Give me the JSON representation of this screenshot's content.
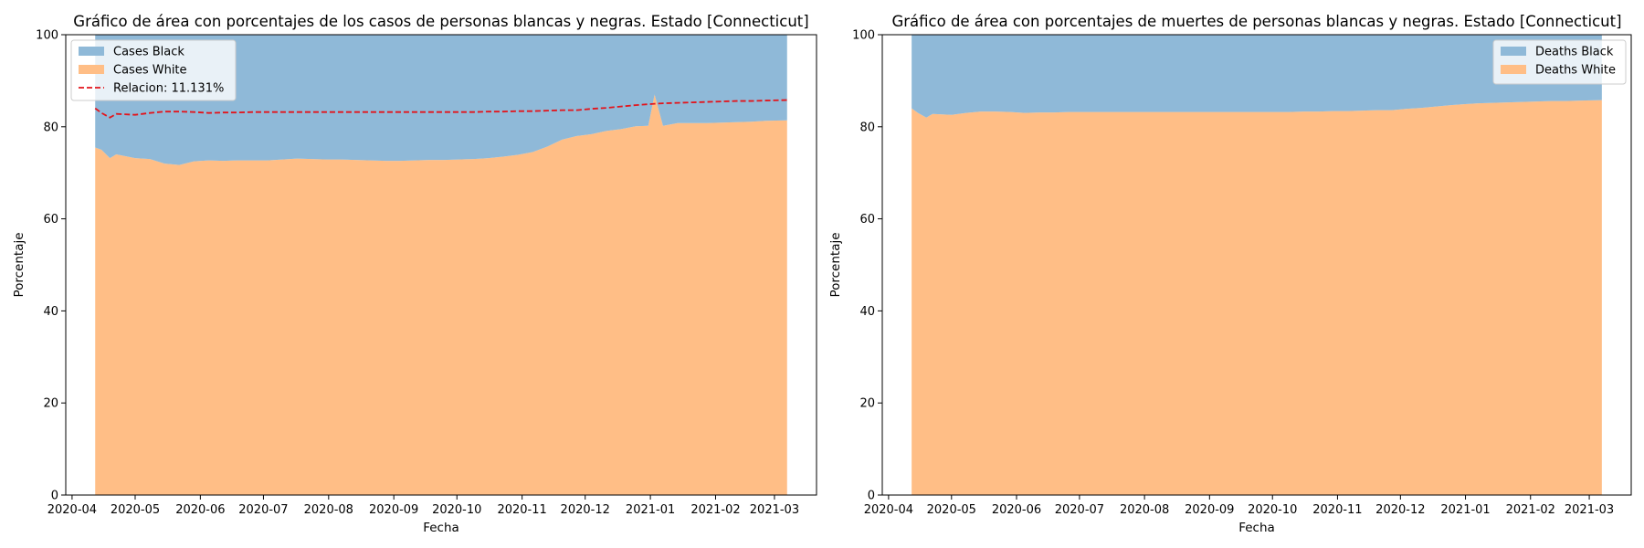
{
  "colors": {
    "black_area": "#8fb9d8",
    "white_area": "#ffbe86",
    "relacion_line": "#e3141b",
    "background": "#ffffff"
  },
  "chart_data": [
    {
      "type": "area",
      "stacked": true,
      "title": "Gráfico de área con porcentajes de los casos de personas blancas y negras. Estado [Connecticut]",
      "xlabel": "Fecha",
      "ylabel": "Porcentaje",
      "xlim": [
        "2020-03-29",
        "2021-03-21"
      ],
      "ylim": [
        0,
        100
      ],
      "x_ticks": [
        "2020-04",
        "2020-05",
        "2020-06",
        "2020-07",
        "2020-08",
        "2020-09",
        "2020-10",
        "2020-11",
        "2020-12",
        "2021-01",
        "2021-02",
        "2021-03"
      ],
      "y_ticks": [
        0,
        20,
        40,
        60,
        80,
        100
      ],
      "grid": false,
      "legend_position": "upper-left",
      "x": [
        "2020-04-12",
        "2020-04-15",
        "2020-04-19",
        "2020-04-22",
        "2020-05-01",
        "2020-05-08",
        "2020-05-15",
        "2020-05-22",
        "2020-05-29",
        "2020-06-05",
        "2020-06-12",
        "2020-06-19",
        "2020-06-26",
        "2020-07-03",
        "2020-07-10",
        "2020-07-17",
        "2020-07-24",
        "2020-07-31",
        "2020-08-07",
        "2020-08-14",
        "2020-08-21",
        "2020-08-28",
        "2020-09-04",
        "2020-09-11",
        "2020-09-18",
        "2020-09-25",
        "2020-10-02",
        "2020-10-09",
        "2020-10-16",
        "2020-10-23",
        "2020-10-30",
        "2020-11-06",
        "2020-11-13",
        "2020-11-20",
        "2020-11-27",
        "2020-12-04",
        "2020-12-11",
        "2020-12-18",
        "2020-12-25",
        "2020-12-31",
        "2021-01-03",
        "2021-01-07",
        "2021-01-14",
        "2021-01-21",
        "2021-01-28",
        "2021-02-04",
        "2021-02-11",
        "2021-02-18",
        "2021-02-25",
        "2021-03-07"
      ],
      "series": [
        {
          "name": "Cases Black",
          "values": [
            24.5,
            25.0,
            26.8,
            26.0,
            26.8,
            27.0,
            28.0,
            28.3,
            27.5,
            27.3,
            27.4,
            27.3,
            27.3,
            27.3,
            27.1,
            26.9,
            27.0,
            27.1,
            27.1,
            27.2,
            27.3,
            27.4,
            27.4,
            27.3,
            27.2,
            27.2,
            27.1,
            27.0,
            26.8,
            26.5,
            26.1,
            25.5,
            24.3,
            22.8,
            22.0,
            21.6,
            20.9,
            20.5,
            19.9,
            19.8,
            13.0,
            19.8,
            19.2,
            19.2,
            19.2,
            19.1,
            19.0,
            18.9,
            18.7,
            18.6
          ]
        },
        {
          "name": "Cases White",
          "values": [
            75.5,
            75.0,
            73.2,
            74.0,
            73.2,
            73.0,
            72.0,
            71.7,
            72.5,
            72.7,
            72.6,
            72.7,
            72.7,
            72.7,
            72.9,
            73.1,
            73.0,
            72.9,
            72.9,
            72.8,
            72.7,
            72.6,
            72.6,
            72.7,
            72.8,
            72.8,
            72.9,
            73.0,
            73.2,
            73.5,
            73.9,
            74.5,
            75.7,
            77.2,
            78.0,
            78.4,
            79.1,
            79.5,
            80.1,
            80.2,
            87.0,
            80.2,
            80.8,
            80.8,
            80.8,
            80.9,
            81.0,
            81.1,
            81.3,
            81.4
          ]
        }
      ],
      "line_series": {
        "name": "Relacion: 11.131%",
        "style": "dashed",
        "values": [
          84.0,
          83.0,
          82.0,
          82.8,
          82.6,
          83.0,
          83.3,
          83.3,
          83.2,
          83.0,
          83.1,
          83.1,
          83.2,
          83.2,
          83.2,
          83.2,
          83.2,
          83.2,
          83.2,
          83.2,
          83.2,
          83.2,
          83.2,
          83.2,
          83.2,
          83.2,
          83.2,
          83.2,
          83.3,
          83.3,
          83.4,
          83.4,
          83.5,
          83.6,
          83.6,
          83.9,
          84.1,
          84.4,
          84.7,
          84.9,
          85.0,
          85.1,
          85.2,
          85.3,
          85.4,
          85.5,
          85.6,
          85.6,
          85.7,
          85.8
        ]
      }
    },
    {
      "type": "area",
      "stacked": true,
      "title": "Gráfico de área con porcentajes de muertes de personas blancas y negras. Estado [Connecticut]",
      "xlabel": "Fecha",
      "ylabel": "Porcentaje",
      "xlim": [
        "2020-03-29",
        "2021-03-21"
      ],
      "ylim": [
        0,
        100
      ],
      "x_ticks": [
        "2020-04",
        "2020-05",
        "2020-06",
        "2020-07",
        "2020-08",
        "2020-09",
        "2020-10",
        "2020-11",
        "2020-12",
        "2021-01",
        "2021-02",
        "2021-03"
      ],
      "y_ticks": [
        0,
        20,
        40,
        60,
        80,
        100
      ],
      "grid": false,
      "legend_position": "upper-right",
      "x": [
        "2020-04-12",
        "2020-04-15",
        "2020-04-19",
        "2020-04-22",
        "2020-05-01",
        "2020-05-08",
        "2020-05-15",
        "2020-05-22",
        "2020-05-29",
        "2020-06-05",
        "2020-06-12",
        "2020-06-19",
        "2020-06-26",
        "2020-07-03",
        "2020-07-10",
        "2020-07-17",
        "2020-07-24",
        "2020-07-31",
        "2020-08-07",
        "2020-08-14",
        "2020-08-21",
        "2020-08-28",
        "2020-09-04",
        "2020-09-11",
        "2020-09-18",
        "2020-09-25",
        "2020-10-02",
        "2020-10-09",
        "2020-10-16",
        "2020-10-23",
        "2020-10-30",
        "2020-11-06",
        "2020-11-13",
        "2020-11-20",
        "2020-11-27",
        "2020-12-04",
        "2020-12-11",
        "2020-12-18",
        "2020-12-25",
        "2020-12-31",
        "2021-01-07",
        "2021-01-14",
        "2021-01-21",
        "2021-01-28",
        "2021-02-04",
        "2021-02-11",
        "2021-02-18",
        "2021-02-25",
        "2021-03-07"
      ],
      "series": [
        {
          "name": "Deaths Black",
          "values": [
            16.0,
            17.0,
            18.0,
            17.2,
            17.4,
            17.0,
            16.7,
            16.7,
            16.8,
            17.0,
            16.9,
            16.9,
            16.8,
            16.8,
            16.8,
            16.8,
            16.8,
            16.8,
            16.8,
            16.8,
            16.8,
            16.8,
            16.8,
            16.8,
            16.8,
            16.8,
            16.8,
            16.8,
            16.7,
            16.7,
            16.6,
            16.6,
            16.5,
            16.4,
            16.4,
            16.1,
            15.9,
            15.6,
            15.3,
            15.1,
            14.9,
            14.8,
            14.7,
            14.6,
            14.5,
            14.4,
            14.4,
            14.3,
            14.2
          ]
        },
        {
          "name": "Deaths White",
          "values": [
            84.0,
            83.0,
            82.0,
            82.8,
            82.6,
            83.0,
            83.3,
            83.3,
            83.2,
            83.0,
            83.1,
            83.1,
            83.2,
            83.2,
            83.2,
            83.2,
            83.2,
            83.2,
            83.2,
            83.2,
            83.2,
            83.2,
            83.2,
            83.2,
            83.2,
            83.2,
            83.2,
            83.2,
            83.3,
            83.3,
            83.4,
            83.4,
            83.5,
            83.6,
            83.6,
            83.9,
            84.1,
            84.4,
            84.7,
            84.9,
            85.1,
            85.2,
            85.3,
            85.4,
            85.5,
            85.6,
            85.6,
            85.7,
            85.8
          ]
        }
      ]
    }
  ]
}
